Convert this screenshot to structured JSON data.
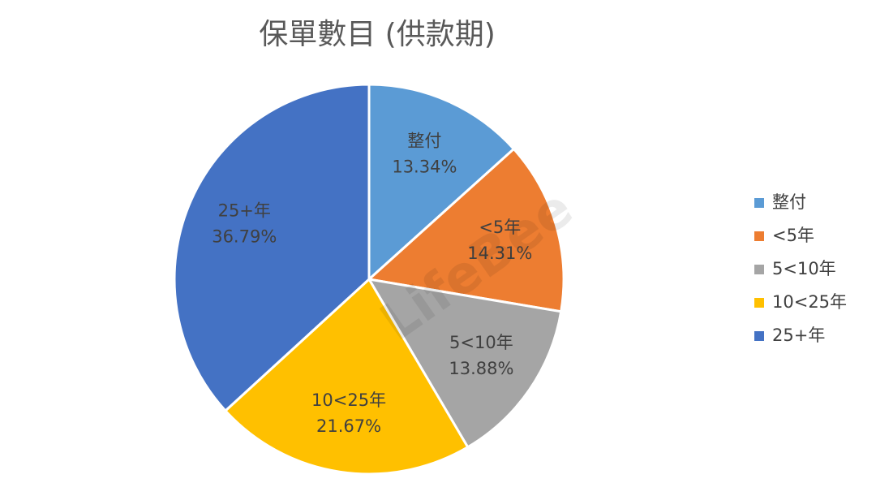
{
  "chart_data": {
    "type": "pie",
    "title": "保單數目 (供款期)",
    "categories": [
      "整付",
      "<5年",
      "5<10年",
      "10<25年",
      "25+年"
    ],
    "values": [
      13.34,
      14.31,
      13.88,
      21.67,
      36.79
    ],
    "value_labels": [
      "13.34%",
      "14.31%",
      "13.88%",
      "21.67%",
      "36.79%"
    ],
    "colors": [
      "#5b9bd5",
      "#ed7d31",
      "#a5a5a5",
      "#ffc000",
      "#4472c4"
    ],
    "legend": "right",
    "watermark": "LifeBee"
  }
}
